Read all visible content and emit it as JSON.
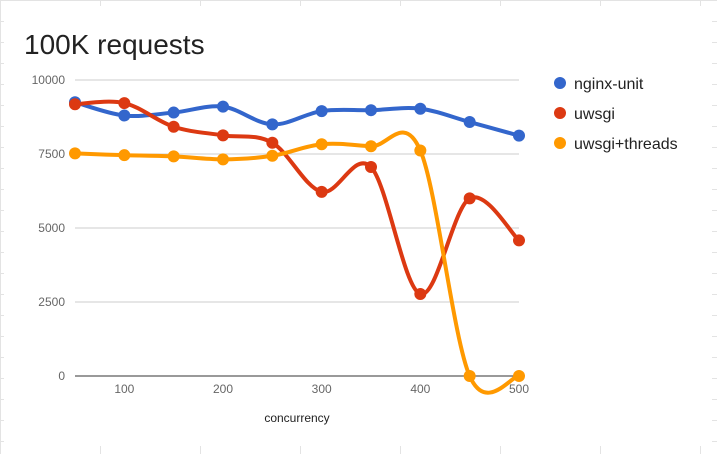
{
  "chart_data": {
    "type": "line",
    "title": "100K requests",
    "xlabel": "concurrency",
    "ylabel": "",
    "x": [
      50,
      100,
      150,
      200,
      250,
      300,
      350,
      400,
      450,
      500
    ],
    "x_ticks": [
      100,
      200,
      300,
      400,
      500
    ],
    "y_ticks": [
      0,
      2500,
      5000,
      7500,
      10000
    ],
    "xlim": [
      50,
      500
    ],
    "ylim": [
      0,
      10000
    ],
    "grid": "horizontal",
    "legend_position": "right",
    "curve": "smooth",
    "series": [
      {
        "name": "nginx-unit",
        "color": "#3366cc",
        "values": [
          9250,
          8800,
          8900,
          9100,
          8500,
          8950,
          8980,
          9030,
          8580,
          8120
        ]
      },
      {
        "name": "uwsgi",
        "color": "#dc3912",
        "values": [
          9180,
          9220,
          8420,
          8130,
          7880,
          6220,
          7060,
          2770,
          6000,
          4580
        ]
      },
      {
        "name": "uwsgi+threads",
        "color": "#ff9900",
        "values": [
          7520,
          7460,
          7420,
          7320,
          7440,
          7830,
          7760,
          7620,
          0,
          0
        ]
      }
    ]
  }
}
